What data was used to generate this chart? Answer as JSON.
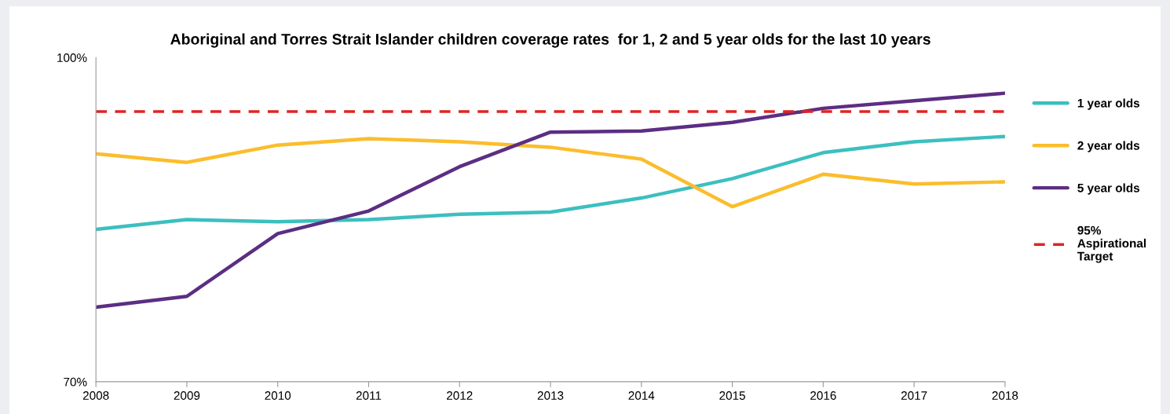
{
  "chart_data": {
    "type": "line",
    "title": "Aboriginal and Torres Strait Islander children coverage rates  for 1, 2 and 5 year olds for the last 10 years",
    "x": [
      2008,
      2009,
      2010,
      2011,
      2012,
      2013,
      2014,
      2015,
      2016,
      2017,
      2018
    ],
    "series": [
      {
        "name": "1 year olds",
        "color": "#3cbfc0",
        "values": [
          84.1,
          85.0,
          84.8,
          85.0,
          85.5,
          85.7,
          87.0,
          88.8,
          91.2,
          92.2,
          92.7
        ]
      },
      {
        "name": "2 year olds",
        "color": "#fbbd2c",
        "values": [
          91.1,
          90.3,
          91.9,
          92.5,
          92.2,
          91.7,
          90.6,
          86.2,
          89.2,
          88.3,
          88.5
        ]
      },
      {
        "name": "5 year olds",
        "color": "#5c2e83",
        "values": [
          76.9,
          77.9,
          83.7,
          85.8,
          89.9,
          93.1,
          93.2,
          94.0,
          95.3,
          96.0,
          96.7
        ]
      }
    ],
    "ref_lines": [
      {
        "axis": "y",
        "value": 95,
        "label": "95%\nAspirational\nTarget",
        "color": "#e02424",
        "line_style": "dashed"
      }
    ],
    "xlim": [
      2008,
      2018
    ],
    "xticks": [
      2008,
      2009,
      2010,
      2011,
      2012,
      2013,
      2014,
      2015,
      2016,
      2017,
      2018
    ],
    "ylim": [
      70,
      100
    ],
    "yticks": [
      {
        "value": 70,
        "label": "70%"
      },
      {
        "value": 100,
        "label": "100%"
      }
    ],
    "grid": false,
    "legend": "right",
    "marker": "none",
    "line_style": "solid"
  }
}
